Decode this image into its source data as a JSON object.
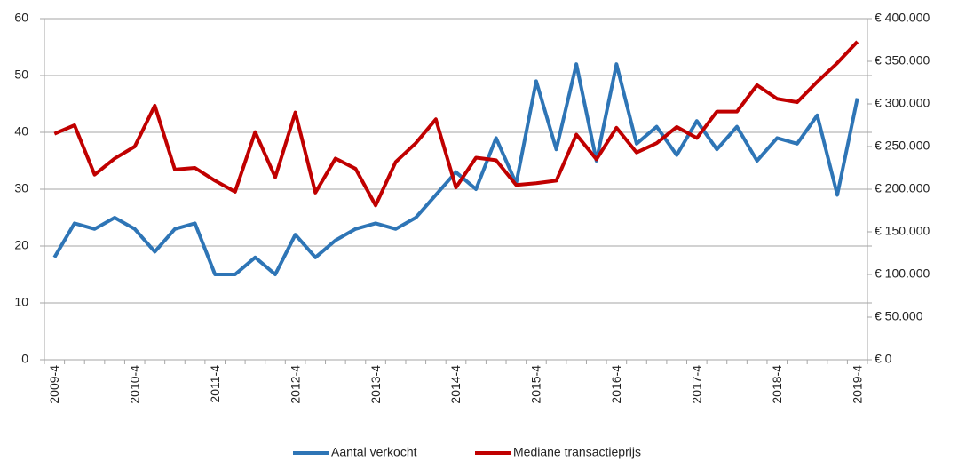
{
  "chart_data": {
    "type": "line",
    "categories": [
      "2009-4",
      null,
      null,
      null,
      "2010-4",
      null,
      null,
      null,
      "2011-4",
      null,
      null,
      null,
      "2012-4",
      null,
      null,
      null,
      "2013-4",
      null,
      null,
      null,
      "2014-4",
      null,
      null,
      null,
      "2015-4",
      null,
      null,
      null,
      "2016-4",
      null,
      null,
      null,
      "2017-4",
      null,
      null,
      null,
      "2018-4",
      null,
      null,
      null,
      "2019-4"
    ],
    "series": [
      {
        "name": "Aantal verkocht",
        "color": "#2e75b6",
        "values": [
          18,
          24,
          23,
          25,
          23,
          19,
          23,
          24,
          15,
          15,
          18,
          15,
          22,
          18,
          21,
          23,
          24,
          23,
          25,
          29,
          33,
          30,
          39,
          31,
          49,
          37,
          52,
          35,
          52,
          38,
          41,
          36,
          42,
          37,
          41,
          35,
          39,
          38,
          43,
          29,
          46
        ]
      },
      {
        "name": "Mediane transactieprijs",
        "color": "#c00000",
        "axis": "y2",
        "values": [
          265000,
          275000,
          217000,
          236000,
          250000,
          298000,
          223000,
          225000,
          210000,
          197000,
          267000,
          214000,
          290000,
          196000,
          236000,
          224000,
          181000,
          232000,
          254000,
          282000,
          202000,
          237000,
          234000,
          205000,
          207000,
          210000,
          264000,
          235000,
          272000,
          243000,
          254000,
          273000,
          260000,
          291000,
          291000,
          322000,
          306000,
          302000,
          326000,
          348000,
          373000
        ]
      }
    ],
    "ylim": [
      0,
      60
    ],
    "yticks": [
      0,
      10,
      20,
      30,
      40,
      50,
      60
    ],
    "y2lim": [
      0,
      400000
    ],
    "y2ticks": [
      {
        "value": 0,
        "label": "€ 0"
      },
      {
        "value": 50000,
        "label": "€ 50.000"
      },
      {
        "value": 100000,
        "label": "€ 100.000"
      },
      {
        "value": 150000,
        "label": "€ 150.000"
      },
      {
        "value": 200000,
        "label": "€ 200.000"
      },
      {
        "value": 250000,
        "label": "€ 250.000"
      },
      {
        "value": 300000,
        "label": "€ 300.000"
      },
      {
        "value": 350000,
        "label": "€ 350.000"
      },
      {
        "value": 400000,
        "label": "€ 400.000"
      }
    ],
    "grid": true,
    "legend": "bottom"
  }
}
